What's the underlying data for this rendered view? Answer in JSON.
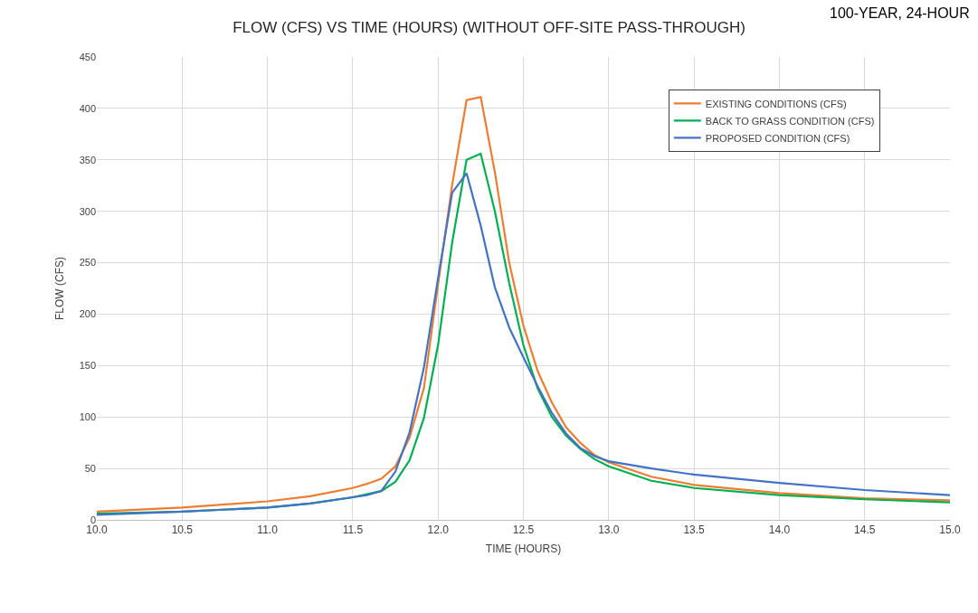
{
  "chart_data": {
    "type": "line",
    "title": "FLOW (CFS) VS TIME (HOURS) (WITHOUT OFF-SITE PASS-THROUGH)",
    "xlabel": "TIME (HOURS)",
    "ylabel": "FLOW (CFS)",
    "annotations": [
      "100-YEAR, 24-HOUR"
    ],
    "x": [
      10.0,
      10.5,
      11.0,
      11.25,
      11.5,
      11.583,
      11.667,
      11.75,
      11.833,
      11.917,
      12.0,
      12.083,
      12.167,
      12.25,
      12.333,
      12.417,
      12.5,
      12.583,
      12.667,
      12.75,
      12.833,
      12.917,
      13.0,
      13.25,
      13.5,
      14.0,
      14.5,
      15.0
    ],
    "series": [
      {
        "name": "EXISTING CONDITIONS (CFS)",
        "color": "#ed7d31",
        "values": [
          8,
          12,
          18,
          23,
          31,
          35,
          40,
          52,
          80,
          128,
          229,
          326,
          408,
          411,
          338,
          250,
          189,
          145,
          114,
          90,
          75,
          63,
          56,
          42,
          34,
          26,
          21,
          19
        ]
      },
      {
        "name": "BACK TO GRASS CONDITION (CFS)",
        "color": "#00b050",
        "values": [
          6,
          8,
          12,
          16,
          22,
          25,
          28,
          37,
          58,
          99,
          170,
          270,
          350,
          356,
          300,
          230,
          170,
          128,
          100,
          82,
          69,
          59,
          52,
          38,
          31,
          24,
          20,
          17
        ]
      },
      {
        "name": "PROPOSED CONDITION (CFS)",
        "color": "#4472c4",
        "values": [
          5,
          8,
          12,
          16,
          22,
          24,
          28,
          47,
          85,
          148,
          235,
          318,
          337,
          286,
          226,
          187,
          158,
          130,
          104,
          84,
          70,
          62,
          57,
          50,
          44,
          36,
          29,
          24
        ]
      }
    ],
    "xlim": [
      10,
      15
    ],
    "xticks": [
      {
        "value": 10,
        "label": "10.0"
      },
      {
        "value": 10.5,
        "label": "10.5"
      },
      {
        "value": 11,
        "label": "11.0"
      },
      {
        "value": 11.5,
        "label": "11.5"
      },
      {
        "value": 12,
        "label": "12.0"
      },
      {
        "value": 12.5,
        "label": "12.5"
      },
      {
        "value": 13,
        "label": "13.0"
      },
      {
        "value": 13.5,
        "label": "13.5"
      },
      {
        "value": 14,
        "label": "14.0"
      },
      {
        "value": 14.5,
        "label": "14.5"
      },
      {
        "value": 15,
        "label": "15.0"
      }
    ],
    "ylim": [
      0,
      450
    ],
    "yticks": [
      0,
      50,
      100,
      150,
      200,
      250,
      300,
      350,
      400,
      450
    ],
    "grid": true,
    "legend": "top right",
    "marker": "none",
    "line_style": "solid"
  }
}
